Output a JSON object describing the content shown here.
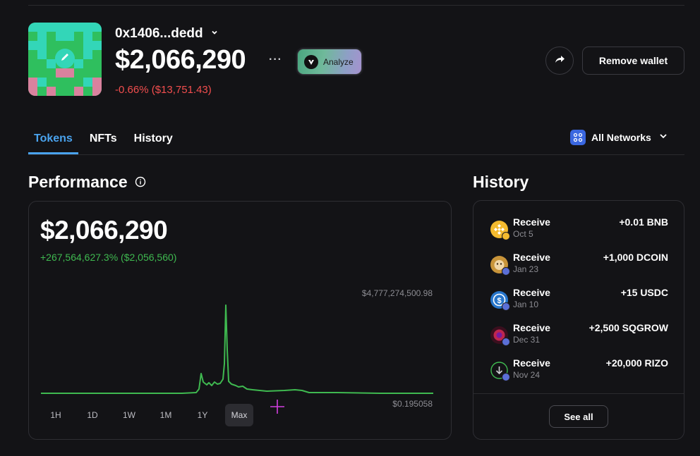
{
  "wallet": {
    "address": "0x1406...dedd",
    "balance": "$2,066,290",
    "more": "···",
    "change": "-0.66% ($13,751.43)",
    "analyze_label": "Analyze",
    "remove_label": "Remove wallet"
  },
  "tabs": [
    {
      "label": "Tokens",
      "active": true
    },
    {
      "label": "NFTs",
      "active": false
    },
    {
      "label": "History",
      "active": false
    }
  ],
  "networks": {
    "label": "All Networks"
  },
  "performance": {
    "title": "Performance",
    "value": "$2,066,290",
    "change": "+267,564,627.3% ($2,056,560)",
    "max_label": "$4,777,274,500.98",
    "min_label": "$0.195058",
    "ranges": [
      {
        "label": "1H",
        "active": false
      },
      {
        "label": "1D",
        "active": false
      },
      {
        "label": "1W",
        "active": false
      },
      {
        "label": "1M",
        "active": false
      },
      {
        "label": "1Y",
        "active": false
      },
      {
        "label": "Max",
        "active": true
      }
    ],
    "line_color": "#3fb950"
  },
  "history": {
    "title": "History",
    "items": [
      {
        "type": "Receive",
        "date": "Oct 5",
        "amount": "+0.01 BNB",
        "icon": "bnb-icon"
      },
      {
        "type": "Receive",
        "date": "Jan 23",
        "amount": "+1,000 DCOIN",
        "icon": "dcoin-icon"
      },
      {
        "type": "Receive",
        "date": "Jan 10",
        "amount": "+15 USDC",
        "icon": "usdc-icon"
      },
      {
        "type": "Receive",
        "date": "Dec 31",
        "amount": "+2,500 SQGROW",
        "icon": "sqgrow-icon"
      },
      {
        "type": "Receive",
        "date": "Nov 24",
        "amount": "+20,000 RIZO",
        "icon": "rizo-icon"
      }
    ],
    "see_all_label": "See all"
  }
}
